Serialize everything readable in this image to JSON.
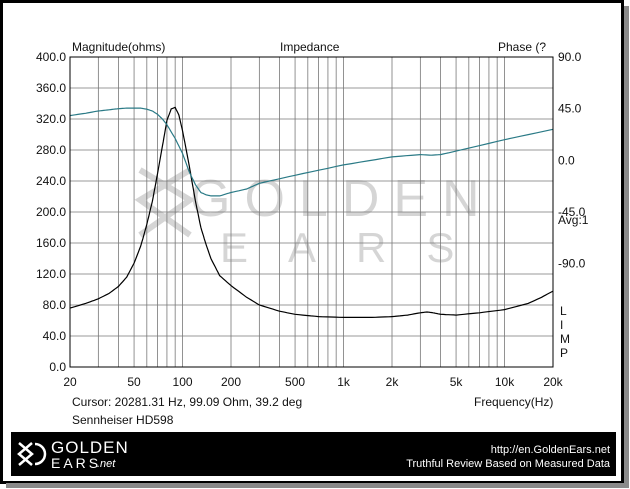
{
  "chart_data": {
    "type": "line",
    "title": "Impedance",
    "left_axis_label": "Magnitude(ohms)",
    "right_axis_label": "Phase (?",
    "xlabel": "Frequency(Hz)",
    "x_scale": "log",
    "xlim": [
      20,
      20000
    ],
    "x_ticks": [
      20,
      50,
      100,
      200,
      500,
      1000,
      2000,
      5000,
      10000,
      20000
    ],
    "x_tick_labels": [
      "20",
      "50",
      "100",
      "200",
      "500",
      "1k",
      "2k",
      "5k",
      "10k",
      "20k"
    ],
    "ylim_left": [
      0,
      400
    ],
    "y_left_ticks": [
      0,
      40,
      80,
      120,
      160,
      200,
      240,
      280,
      320,
      360,
      400
    ],
    "y_left_tick_labels": [
      "0.0",
      "40.0",
      "80.0",
      "120.0",
      "160.0",
      "200.0",
      "240.0",
      "280.0",
      "320.0",
      "360.0",
      "400.0"
    ],
    "ylim_right": [
      -180,
      90
    ],
    "y_right_ticks": [
      90,
      45,
      0,
      -45,
      -90
    ],
    "y_right_tick_labels": [
      "90.0",
      "45.0",
      "0.0",
      "-45.0",
      "-90.0"
    ],
    "avg_label": "Avg:1",
    "limp_label": [
      "L",
      "I",
      "M",
      "P"
    ],
    "cursor_text": "Cursor: 20281.31 Hz, 99.09 Ohm, 39.2 deg",
    "device_name": "Sennheiser HD598",
    "grid": true,
    "series": [
      {
        "axis": "left",
        "color": "#000000",
        "x": [
          20,
          25,
          30,
          35,
          40,
          45,
          50,
          55,
          60,
          65,
          70,
          75,
          80,
          85,
          90,
          95,
          100,
          110,
          120,
          130,
          140,
          150,
          170,
          200,
          250,
          300,
          400,
          500,
          700,
          1000,
          1500,
          2000,
          2500,
          3000,
          3300,
          3600,
          4000,
          5000,
          7000,
          10000,
          14000,
          17000,
          20000
        ],
        "y": [
          76,
          82,
          88,
          95,
          104,
          116,
          134,
          156,
          184,
          214,
          250,
          285,
          318,
          333,
          335,
          325,
          305,
          260,
          215,
          180,
          158,
          140,
          118,
          105,
          90,
          80,
          72,
          68,
          65,
          64,
          64,
          65,
          67,
          70,
          71,
          70,
          68,
          67,
          70,
          74,
          82,
          90,
          98
        ]
      },
      {
        "axis": "right",
        "color": "#2a7a86",
        "x": [
          20,
          25,
          30,
          35,
          40,
          45,
          50,
          55,
          60,
          65,
          70,
          75,
          80,
          90,
          100,
          110,
          120,
          130,
          140,
          150,
          170,
          200,
          250,
          300,
          500,
          1000,
          2000,
          3000,
          3500,
          4000,
          5000,
          10000,
          20000
        ],
        "y": [
          39,
          41,
          43,
          44,
          45,
          45.5,
          45.5,
          45.5,
          44.5,
          43,
          40,
          36,
          31,
          19,
          6,
          -10,
          -21,
          -28,
          -30,
          -31,
          -31,
          -28,
          -25,
          -20,
          -13,
          -4,
          3,
          5,
          4.5,
          5,
          8,
          18,
          27
        ]
      }
    ]
  },
  "footer": {
    "logo_top": "GOLDEN",
    "logo_bottom": "EARS",
    "logo_suffix": ".net",
    "url": "http://en.GoldenEars.net",
    "tagline": "Truthful Review Based on Measured Data"
  },
  "watermark": {
    "line1": "GOLDEN",
    "line2": "EARS"
  }
}
